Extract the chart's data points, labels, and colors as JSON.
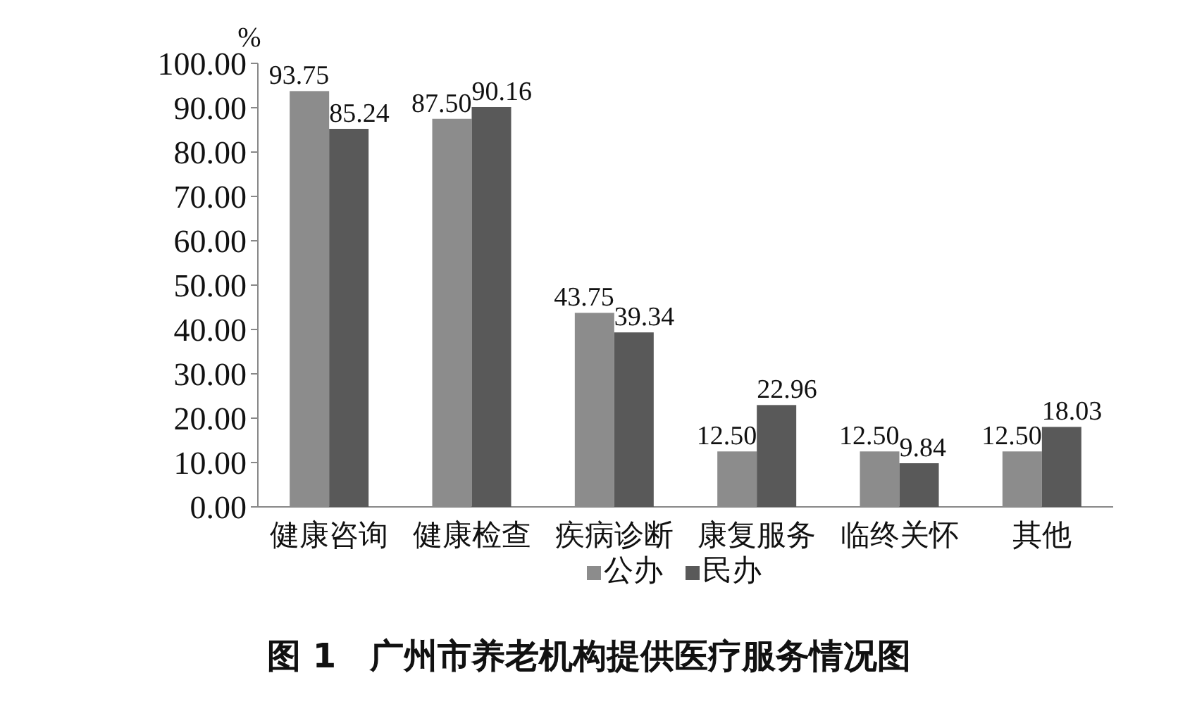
{
  "chart_data": {
    "type": "bar",
    "title": "图 1　广州市养老机构提供医疗服务情况图",
    "ylabel": "%",
    "categories": [
      "健康咨询",
      "健康检查",
      "疾病诊断",
      "康复服务",
      "临终关怀",
      "其他"
    ],
    "series": [
      {
        "name": "公办",
        "color": "#8c8c8c",
        "values": [
          93.75,
          87.5,
          43.75,
          12.5,
          12.5,
          12.5
        ],
        "value_labels": [
          "93.75",
          "87.50",
          "43.75",
          "12.50",
          "12.50",
          "12.50"
        ]
      },
      {
        "name": "民办",
        "color": "#595959",
        "values": [
          85.24,
          90.16,
          39.34,
          22.96,
          9.84,
          18.03
        ],
        "value_labels": [
          "85.24",
          "90.16",
          "39.34",
          "22.96",
          "9.84",
          "18.03"
        ]
      }
    ],
    "ylim": [
      0,
      100
    ],
    "yticks": [
      {
        "value": 0,
        "label": "0.00"
      },
      {
        "value": 10,
        "label": "10.00"
      },
      {
        "value": 20,
        "label": "20.00"
      },
      {
        "value": 30,
        "label": "30.00"
      },
      {
        "value": 40,
        "label": "40.00"
      },
      {
        "value": 50,
        "label": "50.00"
      },
      {
        "value": 60,
        "label": "60.00"
      },
      {
        "value": 70,
        "label": "70.00"
      },
      {
        "value": 80,
        "label": "80.00"
      },
      {
        "value": 90,
        "label": "90.00"
      },
      {
        "value": 100,
        "label": "100.00"
      }
    ],
    "grid": false,
    "legend": "bottom"
  }
}
